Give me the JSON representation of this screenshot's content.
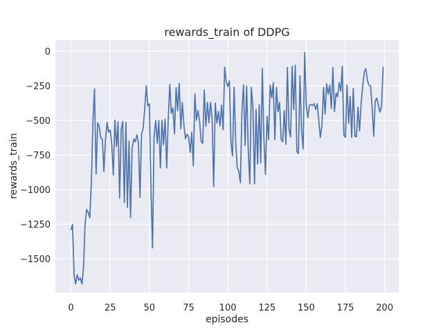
{
  "figure": {
    "background": "#ffffff"
  },
  "chart_data": {
    "type": "line",
    "title": "rewards_train of DDPG",
    "xlabel": "episodes",
    "ylabel": "rewards_train",
    "legend_position": "none",
    "grid": true,
    "plot_bg": "#eaeaf2",
    "grid_color": "#ffffff",
    "line_color": "#4c72b0",
    "text_color": "#262626",
    "xlim": [
      -9.95,
      208.95
    ],
    "ylim": [
      -1745,
      80
    ],
    "xticks": [
      0,
      25,
      50,
      75,
      100,
      125,
      150,
      175,
      200
    ],
    "yticks": [
      0,
      -250,
      -500,
      -750,
      -1000,
      -1250,
      -1500
    ],
    "x_start": 0,
    "x_step": 1,
    "values": [
      -1290,
      -1252,
      -1622,
      -1683,
      -1616,
      -1656,
      -1640,
      -1683,
      -1560,
      -1248,
      -1145,
      -1165,
      -1205,
      -948,
      -502,
      -272,
      -888,
      -518,
      -540,
      -628,
      -636,
      -870,
      -640,
      -515,
      -585,
      -570,
      -674,
      -895,
      -498,
      -690,
      -510,
      -1062,
      -567,
      -508,
      -1094,
      -515,
      -1130,
      -650,
      -1203,
      -700,
      -635,
      -655,
      -605,
      -662,
      -1057,
      -600,
      -558,
      -420,
      -251,
      -395,
      -380,
      -1000,
      -1422,
      -620,
      -500,
      -665,
      -500,
      -845,
      -500,
      -675,
      -490,
      -845,
      -500,
      -240,
      -450,
      -410,
      -600,
      -263,
      -430,
      -232,
      -560,
      -370,
      -535,
      -633,
      -600,
      -620,
      -732,
      -585,
      -830,
      -310,
      -500,
      -428,
      -502,
      -650,
      -666,
      -280,
      -543,
      -370,
      -518,
      -370,
      -490,
      -980,
      -375,
      -520,
      -435,
      -540,
      -390,
      -568,
      -115,
      -222,
      -255,
      -215,
      -665,
      -757,
      -260,
      -656,
      -842,
      -867,
      -951,
      -440,
      -244,
      -682,
      -252,
      -707,
      -959,
      -261,
      -404,
      -959,
      -421,
      -816,
      -387,
      -808,
      -126,
      -623,
      -892,
      -471,
      -639,
      -244,
      -337,
      -227,
      -639,
      -261,
      -437,
      -370,
      -639,
      -655,
      -429,
      -673,
      -118,
      -564,
      -620,
      -109,
      -421,
      -101,
      -723,
      -740,
      -177,
      -565,
      -707,
      -10,
      -387,
      -480,
      -390,
      -385,
      -395,
      -379,
      -421,
      -380,
      -505,
      -623,
      -540,
      -261,
      -454,
      -236,
      -310,
      -245,
      -415,
      -118,
      -437,
      -303,
      -330,
      -227,
      -290,
      -109,
      -606,
      -623,
      -245,
      -522,
      -328,
      -623,
      -269,
      -614,
      -620,
      -405,
      -576,
      -380,
      -250,
      -150,
      -126,
      -210,
      -246,
      -250,
      -405,
      -615,
      -359,
      -340,
      -390,
      -441,
      -400,
      -115
    ]
  }
}
